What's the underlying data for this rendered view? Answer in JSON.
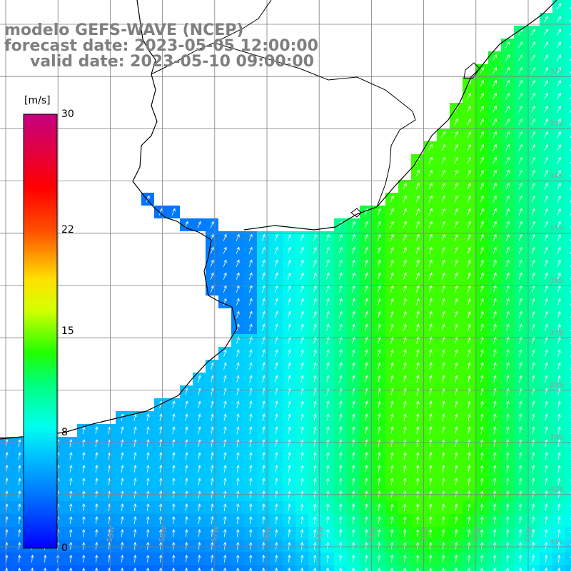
{
  "title": {
    "line1": "modelo GEFS-WAVE (NCEP)",
    "line2": "forecast date: 2023-05-05 12:00:00",
    "line3": "valid date: 2023-05-10 09:00:00"
  },
  "colorbar": {
    "unit": "[m/s]",
    "min": 0,
    "max": 30,
    "ticks": [
      {
        "value": 30,
        "label": "30"
      },
      {
        "value": 22,
        "label": "22"
      },
      {
        "value": 15,
        "label": "15"
      },
      {
        "value": 8,
        "label": "8"
      },
      {
        "value": 0,
        "label": "0"
      }
    ]
  },
  "map": {
    "variable": "wind speed and direction",
    "region": "Rio de la Plata / southern Brazil coast / South Atlantic",
    "lon_range_deg": [
      -73,
      -48
    ],
    "lat_range_deg": [
      -42,
      -25
    ],
    "grid_spacing_deg": 1,
    "lat_labels": [
      "32S",
      "33S",
      "34S",
      "35S",
      "36S",
      "37S",
      "38S",
      "39S",
      "40S",
      "41S"
    ],
    "lon_labels": [
      "63W",
      "62W",
      "61W",
      "60W",
      "59W",
      "58W",
      "57W",
      "56W",
      "55W",
      "54W",
      "53W",
      "52W",
      "51W",
      "50W"
    ],
    "colors": {
      "land": "#ffffff",
      "coastline": "#000000",
      "grid": "#808080",
      "arrow": "#ffffff",
      "title": "#7f7f7f"
    }
  }
}
